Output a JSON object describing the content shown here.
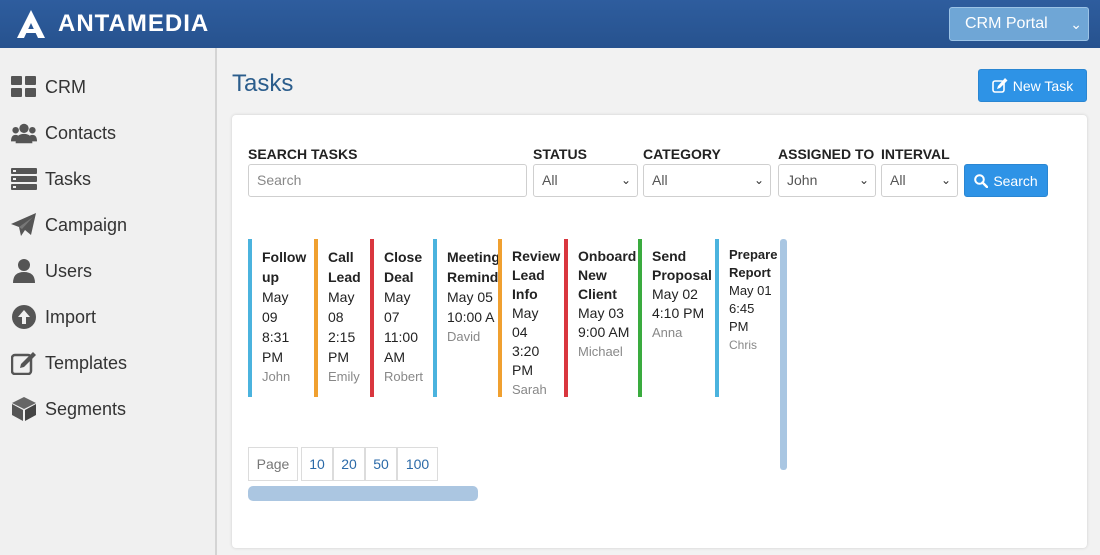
{
  "app": {
    "brand": "ANTAMEDIA",
    "portal_select": "CRM Portal"
  },
  "colors": {
    "topbar": "#2e5d9e",
    "accent": "#2e93e6",
    "title": "#2b5d8c"
  },
  "sidebar": {
    "items": [
      {
        "label": "CRM",
        "icon": "grid-icon"
      },
      {
        "label": "Contacts",
        "icon": "contacts-icon"
      },
      {
        "label": "Tasks",
        "icon": "tasks-icon"
      },
      {
        "label": "Campaign",
        "icon": "paper-plane-icon"
      },
      {
        "label": "Users",
        "icon": "user-icon"
      },
      {
        "label": "Import",
        "icon": "import-icon"
      },
      {
        "label": "Templates",
        "icon": "edit-icon"
      },
      {
        "label": "Segments",
        "icon": "cube-icon"
      }
    ]
  },
  "main": {
    "title": "Tasks",
    "new_task_label": "New Task"
  },
  "filters": {
    "search_label": "SEARCH TASKS",
    "search_placeholder": "Search",
    "status_label": "STATUS",
    "status_value": "All",
    "category_label": "CATEGORY",
    "category_value": "All",
    "assigned_label": "ASSIGNED TO",
    "assigned_value": "John",
    "interval_label": "INTERVAL",
    "interval_value": "All",
    "search_button": "Search"
  },
  "tasks": [
    {
      "title_lines": [
        "Follow",
        "up"
      ],
      "date_lines": [
        "May",
        "09",
        "8:31",
        "PM"
      ],
      "user": "John",
      "color": "#4bb3de"
    },
    {
      "title_lines": [
        "Call",
        "Lead"
      ],
      "date_lines": [
        "May",
        "08",
        "2:15",
        "PM"
      ],
      "user": "Emily",
      "color": "#f0a030"
    },
    {
      "title_lines": [
        "Close",
        "Deal"
      ],
      "date_lines": [
        "May",
        "07",
        "11:00",
        "AM"
      ],
      "user": "Robert",
      "color": "#d9363e"
    },
    {
      "title_lines": [
        "Meeting",
        "Remind"
      ],
      "date_lines": [
        "May 05",
        "10:00 A"
      ],
      "user": "David",
      "color": "#4bb3de"
    },
    {
      "title_lines": [
        "Review",
        "Lead",
        "Info"
      ],
      "date_lines": [
        "May",
        "04",
        "3:20",
        "PM"
      ],
      "user": "Sarah",
      "color": "#f0a030"
    },
    {
      "title_lines": [
        "Onboard",
        "New",
        "Client"
      ],
      "date_lines": [
        "May 03",
        "9:00 AM"
      ],
      "user": "Michael",
      "color": "#d9363e"
    },
    {
      "title_lines": [
        "Send",
        "Proposal"
      ],
      "date_lines": [
        "May 02",
        "4:10 PM"
      ],
      "user": "Anna",
      "color": "#3aab3f"
    },
    {
      "title_lines": [
        "Prepare",
        "Report"
      ],
      "date_lines": [
        "May 01",
        "6:45",
        "PM"
      ],
      "user": "Chris",
      "color": "#4bb3de"
    }
  ],
  "pagination": {
    "label": "Page",
    "sizes": [
      "10",
      "20",
      "50",
      "100"
    ]
  }
}
